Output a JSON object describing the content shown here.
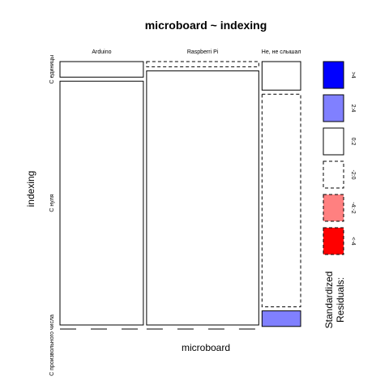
{
  "chart_data": {
    "type": "mosaic",
    "title": "microboard ~ indexing",
    "xlabel": "microboard",
    "ylabel": "indexing",
    "x_categories": [
      "Arduino",
      "Raspberri Pi",
      "Не, не слышал"
    ],
    "y_categories": [
      "С единицы",
      "С нуля",
      "С произвольного числа"
    ],
    "column_widths": [
      0.356,
      0.479,
      0.165
    ],
    "cells": [
      {
        "x": "Arduino",
        "y": "С единицы",
        "share": 0.06,
        "residual_class": "0:2"
      },
      {
        "x": "Arduino",
        "y": "С нуля",
        "share": 0.94,
        "residual_class": "0:2"
      },
      {
        "x": "Arduino",
        "y": "С произвольного числа",
        "share": 0.0,
        "residual_class": "-2:0"
      },
      {
        "x": "Raspberri Pi",
        "y": "С единицы",
        "share": 0.02,
        "residual_class": "-2:0"
      },
      {
        "x": "Raspberri Pi",
        "y": "С нуля",
        "share": 0.98,
        "residual_class": "0:2"
      },
      {
        "x": "Raspberri Pi",
        "y": "С произвольного числа",
        "share": 0.0,
        "residual_class": "-2:0"
      },
      {
        "x": "Не, не слышал",
        "y": "С единицы",
        "share": 0.11,
        "residual_class": "0:2"
      },
      {
        "x": "Не, не слышал",
        "y": "С нуля",
        "share": 0.82,
        "residual_class": "-2:0"
      },
      {
        "x": "Не, не слышал",
        "y": "С произвольного числа",
        "share": 0.06,
        "residual_class": "2:4"
      }
    ],
    "legend": {
      "title": "Standardized\nResiduals:",
      "placement": "right",
      "items": [
        {
          "label": ">4",
          "fill": "#0000ff",
          "dashed": false
        },
        {
          "label": "2:4",
          "fill": "#8080ff",
          "dashed": false
        },
        {
          "label": "0:2",
          "fill": "#ffffff",
          "dashed": false
        },
        {
          "label": "-2:0",
          "fill": "#ffffff",
          "dashed": true
        },
        {
          "label": "-4:-2",
          "fill": "#ff8080",
          "dashed": true
        },
        {
          "label": "<-4",
          "fill": "#ff0000",
          "dashed": true
        }
      ]
    }
  }
}
